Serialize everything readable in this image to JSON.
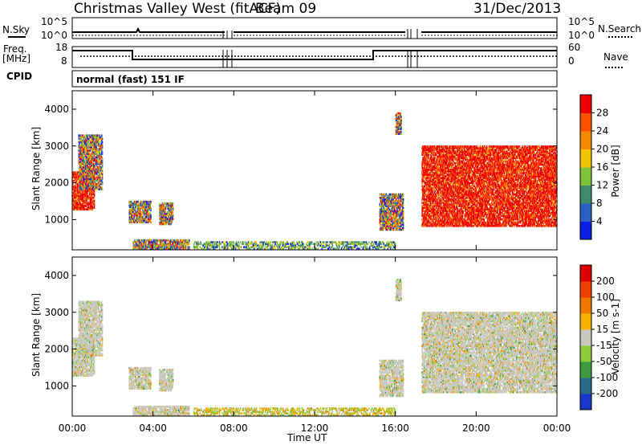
{
  "header": {
    "station": "Christmas Valley West (fitACF)",
    "beam": "Beam 09",
    "date": "31/Dec/2013"
  },
  "panels": {
    "nsky_label": "N.Sky",
    "nsearch_label": "N.Search",
    "noise_tick_top": "10^5",
    "noise_tick_bottom": "10^0",
    "freq_label": "Freq.",
    "freq_unit": "[MHz]",
    "freq_ticks": [
      "18",
      "8"
    ],
    "nave_label": "Nave",
    "nave_ticks": [
      "60",
      "0"
    ],
    "cpid_label": "CPID",
    "cpid_value": "normal (fast) 151 IF"
  },
  "chart_data": [
    {
      "type": "heatmap",
      "name": "power",
      "ylabel": "Slant Range [km]",
      "y_ticks": [
        1000,
        2000,
        3000,
        4000
      ],
      "ylim": [
        180,
        4500
      ],
      "xlabel": "Time UT",
      "x_ticks": [
        "00:00",
        "04:00",
        "08:00",
        "12:00",
        "16:00",
        "20:00",
        "00:00"
      ],
      "xlim_hours": [
        0,
        24
      ],
      "colorbar": {
        "label": "Power [dB]",
        "ticks": [
          "4",
          "8",
          "12",
          "16",
          "20",
          "24",
          "28"
        ],
        "colors": [
          "#0a1ee6",
          "#2e5fc2",
          "#3f8a6a",
          "#7fc23a",
          "#f5c400",
          "#f48a00",
          "#ff5000",
          "#ee0000"
        ]
      },
      "echo_regions": [
        {
          "t0": 0.0,
          "t1": 1.1,
          "r0": 1250,
          "r1": 2300,
          "level": "high"
        },
        {
          "t0": 0.3,
          "t1": 1.5,
          "r0": 1800,
          "r1": 3300,
          "level": "mixed"
        },
        {
          "t0": 2.8,
          "t1": 3.9,
          "r0": 900,
          "r1": 1500,
          "level": "mixed"
        },
        {
          "t0": 4.3,
          "t1": 5.0,
          "r0": 850,
          "r1": 1450,
          "level": "mixed"
        },
        {
          "t0": 3.0,
          "t1": 5.8,
          "r0": 180,
          "r1": 450,
          "level": "mixed"
        },
        {
          "t0": 6.0,
          "t1": 16.0,
          "r0": 180,
          "r1": 400,
          "level": "low"
        },
        {
          "t0": 15.2,
          "t1": 16.4,
          "r0": 700,
          "r1": 1700,
          "level": "mixed"
        },
        {
          "t0": 16.0,
          "t1": 16.3,
          "r0": 3300,
          "r1": 3900,
          "level": "mixed"
        },
        {
          "t0": 17.3,
          "t1": 24.0,
          "r0": 800,
          "r1": 3000,
          "level": "high"
        }
      ]
    },
    {
      "type": "heatmap",
      "name": "velocity",
      "ylabel": "Slant Range [km]",
      "y_ticks": [
        1000,
        2000,
        3000,
        4000
      ],
      "ylim": [
        180,
        4500
      ],
      "xlabel": "Time UT",
      "x_ticks": [
        "00:00",
        "04:00",
        "08:00",
        "12:00",
        "16:00",
        "20:00",
        "00:00"
      ],
      "xlim_hours": [
        0,
        24
      ],
      "colorbar": {
        "label": "Velocity [m s-1]",
        "ticks": [
          "200",
          "100",
          "50",
          "15",
          "-15",
          "-50",
          "-100",
          "-200"
        ],
        "colors": [
          "#1836c8",
          "#2a6a8a",
          "#3e9a3e",
          "#8ccc3a",
          "#c8c8c0",
          "#f5b000",
          "#f07800",
          "#ee4000",
          "#dd0000"
        ]
      }
    }
  ]
}
